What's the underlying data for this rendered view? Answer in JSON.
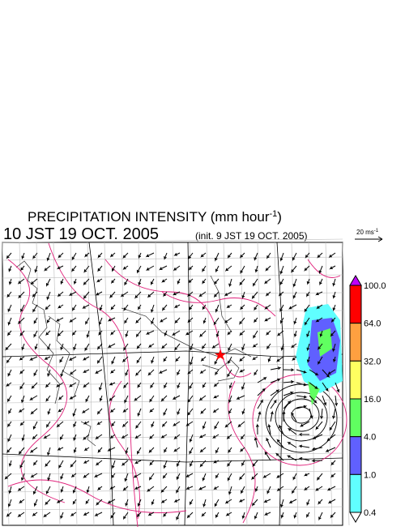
{
  "header": {
    "title": "PRECIPITATION INTENSITY (mm hour",
    "title_sup": "-1",
    "title_end": ")",
    "valid_time": "10 JST 19 OCT. 2005",
    "init_time": "(init. 9 JST 19 OCT. 2005)"
  },
  "vector_scale": {
    "label": "20 ms",
    "label_sup": "-1"
  },
  "colorbar": {
    "labels": [
      "100.0",
      "64.0",
      "32.0",
      "16.0",
      "4.0",
      "1.0",
      "0.4"
    ],
    "colors": [
      "#ff0000",
      "#ffa040",
      "#ffff60",
      "#60ff60",
      "#6060ff",
      "#60ffff"
    ],
    "over_color": "#c000ff",
    "under_color": "#ffffff"
  }
}
